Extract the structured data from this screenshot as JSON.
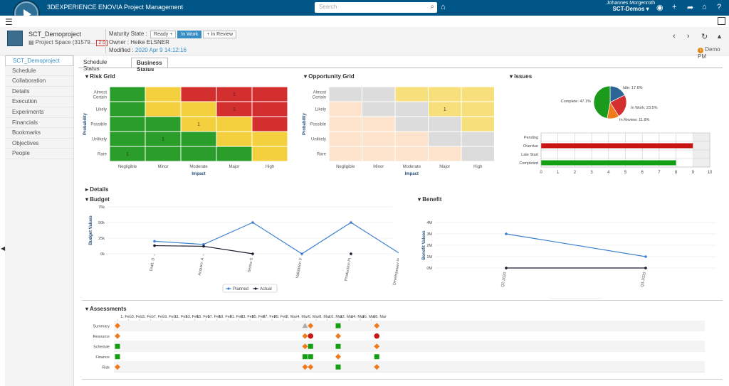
{
  "app": {
    "brand": "3DEXPERIENCE ENOVIA  Project Management",
    "search_placeholder": "Search",
    "user_name": "Johannes Morgenroth",
    "tenant": "SCT-Demos"
  },
  "project": {
    "name": "SCT_Demoproject",
    "type": "Project Space (31579...",
    "revision": "2.0",
    "maturity_label": "Maturity State :",
    "states": [
      "Ready",
      "In Work",
      "In Review"
    ],
    "owner": "Owner : Heike ELSNER",
    "modified_label": "Modified :",
    "modified": "2020 Apr 9 14:12:16",
    "demo_badge": "Demo PM"
  },
  "sidebar": {
    "items": [
      "SCT_Demoproject",
      "Schedule",
      "Collaboration",
      "Details",
      "Execution",
      "Experiments",
      "Financials",
      "Bookmarks",
      "Objectives",
      "People"
    ]
  },
  "tabs": [
    "Schedule Status",
    "Business Status"
  ],
  "sections": {
    "risk": "Risk Grid",
    "opportunity": "Opportunity Grid",
    "issues": "Issues",
    "details": "Details",
    "budget": "Budget",
    "benefit": "Benefit",
    "assessments": "Assessments"
  },
  "chart_data": [
    {
      "type": "heatmap",
      "title": "Risk Grid",
      "xlabel": "Impact",
      "ylabel": "Probability",
      "x": [
        "Negligible",
        "Minor",
        "Moderate",
        "Major",
        "High"
      ],
      "y": [
        "Almost Certain",
        "Likely",
        "Possible",
        "Unlikely",
        "Rare"
      ],
      "cells": [
        [
          "#2a9d2a",
          "#f4d03f",
          "#d32f2f",
          "#d32f2f",
          "#d32f2f"
        ],
        [
          "#2a9d2a",
          "#f4d03f",
          "#f4d03f",
          "#d32f2f",
          "#d32f2f"
        ],
        [
          "#2a9d2a",
          "#2a9d2a",
          "#f4d03f",
          "#f4d03f",
          "#d32f2f"
        ],
        [
          "#2a9d2a",
          "#2a9d2a",
          "#2a9d2a",
          "#f4d03f",
          "#f4d03f"
        ],
        [
          "#2a9d2a",
          "#2a9d2a",
          "#2a9d2a",
          "#2a9d2a",
          "#f4d03f"
        ]
      ],
      "values": [
        [
          "",
          "",
          "",
          "1",
          ""
        ],
        [
          "",
          "",
          "",
          "1",
          ""
        ],
        [
          "",
          "",
          "1",
          "",
          ""
        ],
        [
          "",
          "1",
          "",
          "",
          ""
        ],
        [
          "1",
          "",
          "",
          "",
          ""
        ]
      ]
    },
    {
      "type": "heatmap",
      "title": "Opportunity Grid",
      "xlabel": "Impact",
      "ylabel": "Probability",
      "x": [
        "Negligible",
        "Minor",
        "Moderate",
        "Major",
        "High"
      ],
      "y": [
        "Almost Certain",
        "Likely",
        "Possible",
        "Unlikely",
        "Rare"
      ],
      "cells": [
        [
          "#dcdcdc",
          "#dcdcdc",
          "#f7e07c",
          "#f7e07c",
          "#f7e07c"
        ],
        [
          "#fde3cc",
          "#dcdcdc",
          "#dcdcdc",
          "#f7e07c",
          "#f7e07c"
        ],
        [
          "#fde3cc",
          "#fde3cc",
          "#dcdcdc",
          "#dcdcdc",
          "#f7e07c"
        ],
        [
          "#fde3cc",
          "#fde3cc",
          "#fde3cc",
          "#dcdcdc",
          "#dcdcdc"
        ],
        [
          "#fde3cc",
          "#fde3cc",
          "#fde3cc",
          "#fde3cc",
          "#dcdcdc"
        ]
      ],
      "values": [
        [
          "",
          "",
          "",
          "",
          ""
        ],
        [
          "",
          "",
          "",
          "1",
          ""
        ],
        [
          "",
          "",
          "",
          "",
          ""
        ],
        [
          "",
          "",
          "",
          "",
          ""
        ],
        [
          "",
          "",
          "",
          "",
          ""
        ]
      ]
    },
    {
      "type": "pie",
      "title": "Issues",
      "slices": [
        {
          "label": "Idle: 17.6%",
          "value": 17.6,
          "color": "#2c6496"
        },
        {
          "label": "In Work: 23.5%",
          "value": 23.5,
          "color": "#d32f2f"
        },
        {
          "label": "In Review: 11.8%",
          "value": 11.8,
          "color": "#f07b1d"
        },
        {
          "label": "Complete: 47.1%",
          "value": 47.1,
          "color": "#1b9a1b"
        }
      ]
    },
    {
      "type": "bar",
      "orientation": "horizontal",
      "categories": [
        "Pending",
        "Overdue",
        "Late Start",
        "Completed"
      ],
      "values": [
        0,
        9,
        0,
        8
      ],
      "colors": [
        "#bbbbbb",
        "#c91414",
        "#bbbbbb",
        "#12a012"
      ],
      "ticks": [
        "0",
        "1",
        "2",
        "3",
        "4",
        "5",
        "6",
        "7",
        "8",
        "9",
        "10"
      ],
      "xlim": [
        0,
        10
      ]
    },
    {
      "type": "line",
      "title": "Budget",
      "ylabel": "Budget Values",
      "categories": [
        "Draft: D",
        "Acquire: A",
        "Series S",
        "Validation V",
        "Production PI",
        "Development PI"
      ],
      "ticks": [
        "75k",
        "50k",
        "25k",
        "0k"
      ],
      "ylim": [
        0,
        75000
      ],
      "series": [
        {
          "name": "Planned",
          "color": "#3c7fce",
          "values": [
            20000,
            15000,
            50000,
            0,
            50000,
            0
          ]
        },
        {
          "name": "Actual",
          "color": "#1a1a2e",
          "values": [
            13000,
            12000,
            0,
            null,
            0,
            null
          ]
        }
      ]
    },
    {
      "type": "line",
      "title": "Benefit",
      "ylabel": "Benefit Values",
      "categories": [
        "Q2-2020",
        "Q3-2020"
      ],
      "ticks": [
        "4M",
        "3M",
        "2M",
        "1M",
        "0M"
      ],
      "ylim": [
        0,
        4000000
      ],
      "series": [
        {
          "name": "Planned",
          "color": "#3c7fce",
          "values": [
            3000000,
            1000000
          ]
        },
        {
          "name": "Actual",
          "color": "#1a1a2e",
          "values": [
            0,
            0
          ]
        }
      ]
    },
    {
      "type": "table",
      "title": "Assessments",
      "dates": [
        "1. Feb",
        "3. Feb",
        "5. Feb",
        "7. Feb",
        "9. Feb",
        "11. Feb",
        "13. Feb",
        "15. Feb",
        "17. Feb",
        "19. Feb",
        "21. Feb",
        "23. Feb",
        "25. Feb",
        "27. Feb",
        "29. Feb",
        "2. Mar",
        "4. Mar",
        "6. Mar",
        "8. Mar",
        "10. Mar",
        "12. Mar",
        "14. Mar",
        "16. Mar",
        "18. Mar"
      ],
      "rows": [
        "Summary",
        "Resource",
        "Schedule",
        "Finance",
        "Risk"
      ],
      "markers": [
        {
          "row": 0,
          "day": 0,
          "shape": "diamond",
          "color": "#f07b1d"
        },
        {
          "row": 0,
          "day": 34,
          "shape": "triangle",
          "color": "#aaaaaa"
        },
        {
          "row": 0,
          "day": 35,
          "shape": "diamond",
          "color": "#f07b1d"
        },
        {
          "row": 0,
          "day": 40,
          "shape": "square",
          "color": "#12a012"
        },
        {
          "row": 0,
          "day": 47,
          "shape": "diamond",
          "color": "#f07b1d"
        },
        {
          "row": 1,
          "day": 0,
          "shape": "diamond",
          "color": "#f07b1d"
        },
        {
          "row": 1,
          "day": 34,
          "shape": "diamond",
          "color": "#f07b1d"
        },
        {
          "row": 1,
          "day": 35,
          "shape": "circle",
          "color": "#c91414"
        },
        {
          "row": 1,
          "day": 40,
          "shape": "diamond",
          "color": "#f07b1d"
        },
        {
          "row": 1,
          "day": 47,
          "shape": "circle",
          "color": "#c91414"
        },
        {
          "row": 2,
          "day": 0,
          "shape": "square",
          "color": "#12a012"
        },
        {
          "row": 2,
          "day": 34,
          "shape": "diamond",
          "color": "#f07b1d"
        },
        {
          "row": 2,
          "day": 35,
          "shape": "square",
          "color": "#12a012"
        },
        {
          "row": 2,
          "day": 40,
          "shape": "square",
          "color": "#12a012"
        },
        {
          "row": 2,
          "day": 47,
          "shape": "diamond",
          "color": "#f07b1d"
        },
        {
          "row": 3,
          "day": 0,
          "shape": "square",
          "color": "#12a012"
        },
        {
          "row": 3,
          "day": 34,
          "shape": "square",
          "color": "#12a012"
        },
        {
          "row": 3,
          "day": 35,
          "shape": "square",
          "color": "#12a012"
        },
        {
          "row": 3,
          "day": 40,
          "shape": "diamond",
          "color": "#f07b1d"
        },
        {
          "row": 3,
          "day": 47,
          "shape": "square",
          "color": "#12a012"
        },
        {
          "row": 4,
          "day": 0,
          "shape": "diamond",
          "color": "#f07b1d"
        },
        {
          "row": 4,
          "day": 34,
          "shape": "diamond",
          "color": "#f07b1d"
        },
        {
          "row": 4,
          "day": 35,
          "shape": "diamond",
          "color": "#f07b1d"
        },
        {
          "row": 4,
          "day": 40,
          "shape": "square",
          "color": "#12a012"
        },
        {
          "row": 4,
          "day": 47,
          "shape": "diamond",
          "color": "#f07b1d"
        }
      ]
    }
  ]
}
